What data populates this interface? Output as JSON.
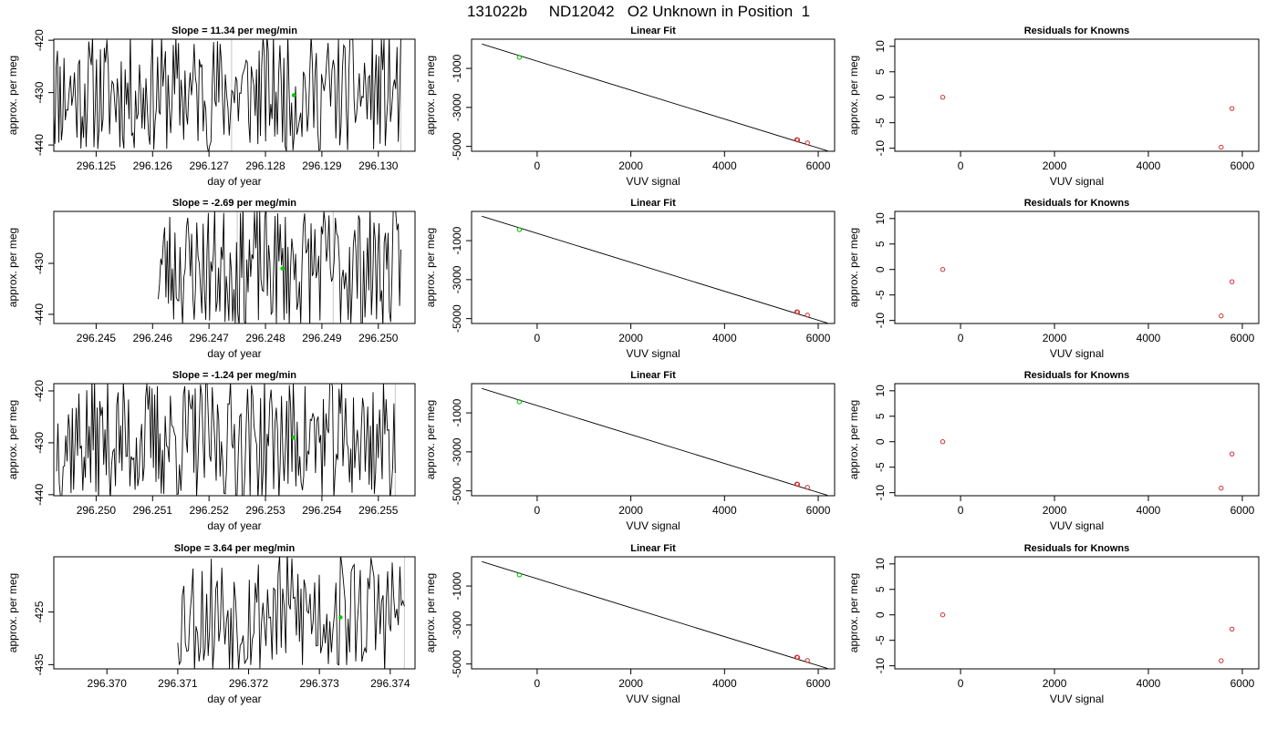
{
  "page": {
    "title": "131022b     ND12042   O2 Unknown in Position  1"
  },
  "chart_data": [
    {
      "type": "line",
      "panel": "time",
      "title": "Slope =  11.34  per meg/min",
      "xlabel": "day of year",
      "ylabel": "approx. per meg",
      "xlim": [
        296.12425,
        296.13065
      ],
      "ylim": [
        -441.2,
        -419.8
      ],
      "xticks": [
        296.125,
        296.126,
        296.127,
        296.128,
        296.129,
        296.13
      ],
      "xtick_labels": [
        "296.125",
        "296.126",
        "296.127",
        "296.128",
        "296.129",
        "296.130"
      ],
      "yticks": [
        -420,
        -430,
        -440
      ],
      "ytick_labels": [
        "-420",
        "-430",
        "-440"
      ],
      "line_x_range": [
        296.1242,
        296.1304
      ],
      "line_y_range": [
        -441.5,
        -418.5
      ],
      "line_count": 270,
      "seed": 11,
      "line_series": "signal",
      "marker": {
        "x": 296.1285,
        "y": -430.5,
        "color": "#00cc00"
      },
      "grey_lines": [
        296.1274,
        296.1304
      ],
      "colors": {
        "line": "#000000",
        "marker": "#00cc00",
        "grey": "#c8c8c8"
      }
    },
    {
      "type": "scatter",
      "panel": "fit",
      "title": "Linear Fit",
      "xlabel": "VUV signal",
      "ylabel": "approx. per meg",
      "xlim": [
        -1400,
        6350
      ],
      "ylim": [
        -5250,
        500
      ],
      "xticks": [
        0,
        2000,
        4000,
        6000
      ],
      "xtick_labels": [
        "0",
        "2000",
        "4000",
        "6000"
      ],
      "yticks": [
        -1000,
        -3000,
        -5000
      ],
      "ytick_labels": [
        "-1000",
        "-3000",
        "-5000"
      ],
      "fit_line": [
        [
          -1180,
          250
        ],
        [
          6200,
          -5230
        ]
      ],
      "knowns": [
        {
          "x": 5545,
          "y": -4650
        },
        {
          "x": 5560,
          "y": -4670
        },
        {
          "x": 5770,
          "y": -4820
        }
      ],
      "unknown": {
        "x": -380,
        "y": -430
      },
      "colors": {
        "line": "#000000",
        "knowns": "#d03030",
        "unknown": "#00bb00"
      }
    },
    {
      "type": "scatter",
      "panel": "residuals",
      "title": "Residuals for Knowns",
      "xlabel": "VUV signal",
      "ylabel": "approx. per meg",
      "xlim": [
        -1400,
        6350
      ],
      "ylim": [
        -10.6,
        11.4
      ],
      "xticks": [
        0,
        2000,
        4000,
        6000
      ],
      "xtick_labels": [
        "0",
        "2000",
        "4000",
        "6000"
      ],
      "yticks": [
        10,
        5,
        0,
        -5,
        -10
      ],
      "ytick_labels": [
        "10",
        "5",
        "0",
        "-5",
        "-10"
      ],
      "points": [
        {
          "x": -380,
          "y": 0
        },
        {
          "x": 5780,
          "y": -2.2
        },
        {
          "x": 5550,
          "y": -9.8
        }
      ],
      "colors": {
        "points": "#d03030"
      }
    },
    {
      "type": "line",
      "panel": "time",
      "title": "Slope =  -2.69  per meg/min",
      "xlabel": "day of year",
      "ylabel": "approx. per meg",
      "xlim": [
        296.24425,
        296.25065
      ],
      "ylim": [
        -441.8,
        -419.8
      ],
      "xticks": [
        296.245,
        296.246,
        296.247,
        296.248,
        296.249,
        296.25
      ],
      "xtick_labels": [
        "296.245",
        "296.246",
        "296.247",
        "296.248",
        "296.249",
        "296.250"
      ],
      "yticks": [
        -430,
        -440
      ],
      "ytick_labels": [
        "-430",
        "-440"
      ],
      "line_x_range": [
        296.2461,
        296.2504
      ],
      "line_y_range": [
        -443,
        -418.5
      ],
      "line_count": 190,
      "seed": 23,
      "line_series": "signal",
      "marker": {
        "x": 296.2483,
        "y": -431,
        "color": "#00cc00"
      },
      "grey_lines": [
        296.2475,
        296.2492
      ],
      "colors": {
        "line": "#000000",
        "marker": "#00cc00",
        "grey": "#c8c8c8"
      }
    },
    {
      "type": "scatter",
      "panel": "fit",
      "title": "Linear Fit",
      "xlabel": "VUV signal",
      "ylabel": "approx. per meg",
      "xlim": [
        -1400,
        6350
      ],
      "ylim": [
        -5250,
        500
      ],
      "xticks": [
        0,
        2000,
        4000,
        6000
      ],
      "xtick_labels": [
        "0",
        "2000",
        "4000",
        "6000"
      ],
      "yticks": [
        -1000,
        -3000,
        -5000
      ],
      "ytick_labels": [
        "-1000",
        "-3000",
        "-5000"
      ],
      "fit_line": [
        [
          -1180,
          250
        ],
        [
          6200,
          -5230
        ]
      ],
      "knowns": [
        {
          "x": 5545,
          "y": -4650
        },
        {
          "x": 5560,
          "y": -4670
        },
        {
          "x": 5770,
          "y": -4820
        }
      ],
      "unknown": {
        "x": -380,
        "y": -431
      },
      "colors": {
        "line": "#000000",
        "knowns": "#d03030",
        "unknown": "#00bb00"
      }
    },
    {
      "type": "scatter",
      "panel": "residuals",
      "title": "Residuals for Knowns",
      "xlabel": "VUV signal",
      "ylabel": "approx. per meg",
      "xlim": [
        -1400,
        6350
      ],
      "ylim": [
        -10.6,
        11.4
      ],
      "xticks": [
        0,
        2000,
        4000,
        6000
      ],
      "xtick_labels": [
        "0",
        "2000",
        "4000",
        "6000"
      ],
      "yticks": [
        10,
        5,
        0,
        -5,
        -10
      ],
      "ytick_labels": [
        "10",
        "5",
        "0",
        "-5",
        "-10"
      ],
      "points": [
        {
          "x": -380,
          "y": 0
        },
        {
          "x": 5780,
          "y": -2.4
        },
        {
          "x": 5550,
          "y": -9.1
        }
      ],
      "colors": {
        "points": "#d03030"
      }
    },
    {
      "type": "line",
      "panel": "time",
      "title": "Slope =  -1.24  per meg/min",
      "xlabel": "day of year",
      "ylabel": "approx. per meg",
      "xlim": [
        296.24925,
        296.25565
      ],
      "ylim": [
        -440.2,
        -418.6
      ],
      "xticks": [
        296.25,
        296.251,
        296.252,
        296.253,
        296.254,
        296.255
      ],
      "xtick_labels": [
        "296.250",
        "296.251",
        "296.252",
        "296.253",
        "296.254",
        "296.255"
      ],
      "yticks": [
        -420,
        -430,
        -440
      ],
      "ytick_labels": [
        "-420",
        "-430",
        "-440"
      ],
      "line_x_range": [
        296.2493,
        296.2553
      ],
      "line_y_range": [
        -441.5,
        -417.5
      ],
      "line_count": 260,
      "seed": 37,
      "line_series": "signal",
      "marker": {
        "x": 296.2535,
        "y": -429,
        "color": "#00cc00"
      },
      "grey_lines": [
        296.2553
      ],
      "colors": {
        "line": "#000000",
        "marker": "#00cc00",
        "grey": "#c8c8c8"
      }
    },
    {
      "type": "scatter",
      "panel": "fit",
      "title": "Linear Fit",
      "xlabel": "VUV signal",
      "ylabel": "approx. per meg",
      "xlim": [
        -1400,
        6350
      ],
      "ylim": [
        -5250,
        500
      ],
      "xticks": [
        0,
        2000,
        4000,
        6000
      ],
      "xtick_labels": [
        "0",
        "2000",
        "4000",
        "6000"
      ],
      "yticks": [
        -1000,
        -3000,
        -5000
      ],
      "ytick_labels": [
        "-1000",
        "-3000",
        "-5000"
      ],
      "fit_line": [
        [
          -1180,
          250
        ],
        [
          6200,
          -5230
        ]
      ],
      "knowns": [
        {
          "x": 5545,
          "y": -4650
        },
        {
          "x": 5560,
          "y": -4670
        },
        {
          "x": 5770,
          "y": -4820
        }
      ],
      "unknown": {
        "x": -380,
        "y": -429
      },
      "colors": {
        "line": "#000000",
        "knowns": "#d03030",
        "unknown": "#00bb00"
      }
    },
    {
      "type": "scatter",
      "panel": "residuals",
      "title": "Residuals for Knowns",
      "xlabel": "VUV signal",
      "ylabel": "approx. per meg",
      "xlim": [
        -1400,
        6350
      ],
      "ylim": [
        -10.6,
        11.4
      ],
      "xticks": [
        0,
        2000,
        4000,
        6000
      ],
      "xtick_labels": [
        "0",
        "2000",
        "4000",
        "6000"
      ],
      "yticks": [
        10,
        5,
        0,
        -5,
        -10
      ],
      "ytick_labels": [
        "10",
        "5",
        "0",
        "-5",
        "-10"
      ],
      "points": [
        {
          "x": -380,
          "y": 0
        },
        {
          "x": 5780,
          "y": -2.4
        },
        {
          "x": 5550,
          "y": -9.1
        }
      ],
      "colors": {
        "points": "#d03030"
      }
    },
    {
      "type": "line",
      "panel": "time",
      "title": "Slope =  3.64  per meg/min",
      "xlabel": "day of year",
      "ylabel": "approx. per meg",
      "xlim": [
        296.36925,
        296.37435
      ],
      "ylim": [
        -435.8,
        -414.5
      ],
      "xticks": [
        296.37,
        296.371,
        296.372,
        296.373,
        296.374
      ],
      "xtick_labels": [
        "296.370",
        "296.371",
        "296.372",
        "296.373",
        "296.374"
      ],
      "yticks": [
        -425,
        -435
      ],
      "ytick_labels": [
        "-425",
        "-435"
      ],
      "line_x_range": [
        296.371,
        296.3742
      ],
      "line_y_range": [
        -437,
        -413
      ],
      "line_count": 150,
      "seed": 53,
      "line_series": "signal",
      "marker": {
        "x": 296.3733,
        "y": -426,
        "color": "#00cc00"
      },
      "grey_lines": [
        296.3742
      ],
      "colors": {
        "line": "#000000",
        "marker": "#00cc00",
        "grey": "#c8c8c8"
      }
    },
    {
      "type": "scatter",
      "panel": "fit",
      "title": "Linear Fit",
      "xlabel": "VUV signal",
      "ylabel": "approx. per meg",
      "xlim": [
        -1400,
        6350
      ],
      "ylim": [
        -5250,
        500
      ],
      "xticks": [
        0,
        2000,
        4000,
        6000
      ],
      "xtick_labels": [
        "0",
        "2000",
        "4000",
        "6000"
      ],
      "yticks": [
        -1000,
        -3000,
        -5000
      ],
      "ytick_labels": [
        "-1000",
        "-3000",
        "-5000"
      ],
      "fit_line": [
        [
          -1180,
          250
        ],
        [
          6200,
          -5230
        ]
      ],
      "knowns": [
        {
          "x": 5545,
          "y": -4650
        },
        {
          "x": 5560,
          "y": -4670
        },
        {
          "x": 5770,
          "y": -4820
        }
      ],
      "unknown": {
        "x": -380,
        "y": -426
      },
      "colors": {
        "line": "#000000",
        "knowns": "#d03030",
        "unknown": "#00bb00"
      }
    },
    {
      "type": "scatter",
      "panel": "residuals",
      "title": "Residuals for Knowns",
      "xlabel": "VUV signal",
      "ylabel": "approx. per meg",
      "xlim": [
        -1400,
        6350
      ],
      "ylim": [
        -10.6,
        11.4
      ],
      "xticks": [
        0,
        2000,
        4000,
        6000
      ],
      "xtick_labels": [
        "0",
        "2000",
        "4000",
        "6000"
      ],
      "yticks": [
        10,
        5,
        0,
        -5,
        -10
      ],
      "ytick_labels": [
        "10",
        "5",
        "0",
        "-5",
        "-10"
      ],
      "points": [
        {
          "x": -380,
          "y": 0
        },
        {
          "x": 5780,
          "y": -2.8
        },
        {
          "x": 5550,
          "y": -9.0
        }
      ],
      "colors": {
        "points": "#d03030"
      }
    }
  ]
}
